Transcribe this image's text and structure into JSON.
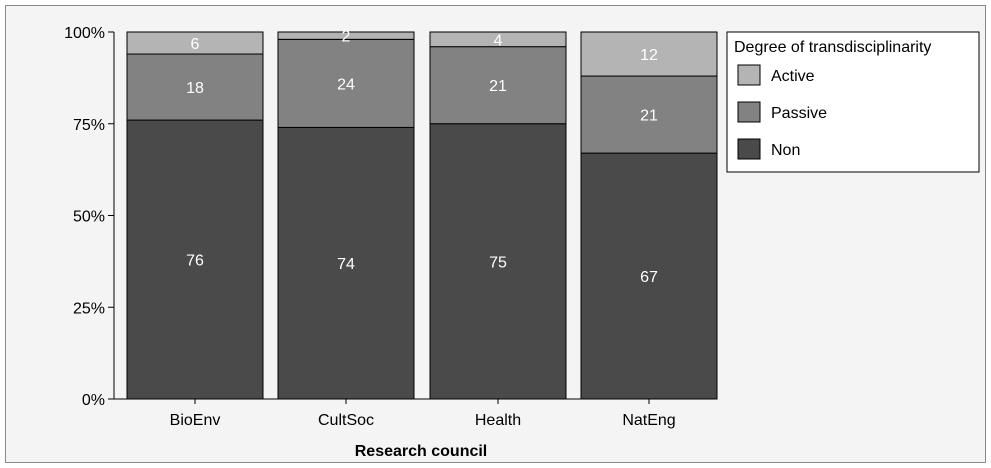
{
  "chart_data": {
    "type": "bar",
    "stacked": true,
    "categories": [
      "BioEnv",
      "CultSoc",
      "Health",
      "NatEng"
    ],
    "series": [
      {
        "name": "Non",
        "values": [
          76,
          74,
          75,
          67
        ],
        "color": "#4a4a4a"
      },
      {
        "name": "Passive",
        "values": [
          18,
          24,
          21,
          21
        ],
        "color": "#828282"
      },
      {
        "name": "Active",
        "values": [
          6,
          2,
          4,
          12
        ],
        "color": "#b4b4b4"
      }
    ],
    "data_labels": {
      "Non": [
        "76",
        "74",
        "75",
        "67"
      ],
      "Passive": [
        "18",
        "24",
        "21",
        "21"
      ],
      "Active": [
        "6",
        "2",
        "4",
        "12"
      ]
    },
    "xlabel": "Research council",
    "ylabel": "",
    "ylim": [
      0,
      100
    ],
    "yticks": [
      0,
      25,
      50,
      75,
      100
    ],
    "ytick_labels": [
      "0%",
      "25%",
      "50%",
      "75%",
      "100%"
    ],
    "legend": {
      "title": "Degree of transdisciplinarity",
      "placement": "top-right",
      "entries": [
        "Active",
        "Passive",
        "Non"
      ]
    },
    "grid": false
  }
}
